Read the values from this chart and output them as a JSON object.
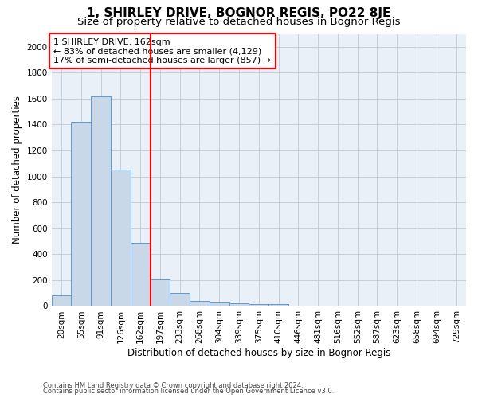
{
  "title": "1, SHIRLEY DRIVE, BOGNOR REGIS, PO22 8JE",
  "subtitle": "Size of property relative to detached houses in Bognor Regis",
  "xlabel": "Distribution of detached houses by size in Bognor Regis",
  "ylabel": "Number of detached properties",
  "footnote1": "Contains HM Land Registry data © Crown copyright and database right 2024.",
  "footnote2": "Contains public sector information licensed under the Open Government Licence v3.0.",
  "bar_labels": [
    "20sqm",
    "55sqm",
    "91sqm",
    "126sqm",
    "162sqm",
    "197sqm",
    "233sqm",
    "268sqm",
    "304sqm",
    "339sqm",
    "375sqm",
    "410sqm",
    "446sqm",
    "481sqm",
    "516sqm",
    "552sqm",
    "587sqm",
    "623sqm",
    "658sqm",
    "694sqm",
    "729sqm"
  ],
  "bar_values": [
    80,
    1420,
    1620,
    1050,
    490,
    205,
    100,
    42,
    28,
    20,
    18,
    18,
    0,
    0,
    0,
    0,
    0,
    0,
    0,
    0,
    0
  ],
  "bar_color": "#c8d8e8",
  "bar_edge_color": "#5b9bd5",
  "vline_idx": 4,
  "vline_color": "red",
  "annotation_text": "1 SHIRLEY DRIVE: 162sqm\n← 83% of detached houses are smaller (4,129)\n17% of semi-detached houses are larger (857) →",
  "annotation_box_color": "white",
  "annotation_box_edge": "red",
  "ylim": [
    0,
    2100
  ],
  "yticks": [
    0,
    200,
    400,
    600,
    800,
    1000,
    1200,
    1400,
    1600,
    1800,
    2000
  ],
  "grid_color": "#c0c8d8",
  "background_color": "#eaf0f8",
  "title_fontsize": 11,
  "subtitle_fontsize": 9.5,
  "axis_label_fontsize": 8.5,
  "tick_fontsize": 7.5,
  "annotation_fontsize": 8.0,
  "footnote_fontsize": 6.0
}
